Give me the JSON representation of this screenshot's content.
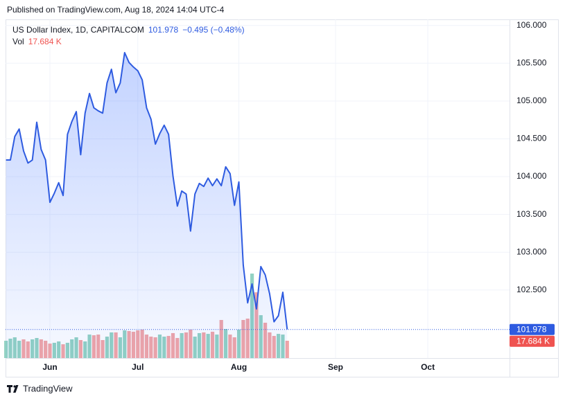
{
  "header": {
    "published": "Published on TradingView.com, Aug 18, 2024 14:04 UTC-4"
  },
  "chart_data": {
    "type": "line",
    "symbol": "US Dollar Index, 1D, CAPITALCOM",
    "change_label": "−0.495 (−0.48%)",
    "x": [
      0,
      1,
      2,
      3,
      4,
      5,
      6,
      7,
      8,
      9,
      10,
      11,
      12,
      13,
      14,
      15,
      16,
      17,
      18,
      19,
      20,
      21,
      22,
      23,
      24,
      25,
      26,
      27,
      28,
      29,
      30,
      31,
      32,
      33,
      34,
      35,
      36,
      37,
      38,
      39,
      40,
      41,
      42,
      43,
      44,
      45,
      46,
      47,
      48,
      49,
      50,
      51,
      52,
      53,
      54,
      55,
      56,
      57,
      58,
      59,
      60,
      61,
      62,
      63,
      64
    ],
    "xlim": [
      -0.1,
      114.6
    ],
    "xticks": [
      {
        "value": 10,
        "label": "Jun"
      },
      {
        "value": 30,
        "label": "Jul"
      },
      {
        "value": 53,
        "label": "Aug"
      },
      {
        "value": 75,
        "label": "Sep"
      },
      {
        "value": 96,
        "label": "Oct"
      }
    ],
    "ylim": [
      101.6,
      106.08
    ],
    "yticks": [
      {
        "value": 102.5,
        "label": "102.500"
      },
      {
        "value": 103,
        "label": "103.000"
      },
      {
        "value": 103.5,
        "label": "103.500"
      },
      {
        "value": 104,
        "label": "104.000"
      },
      {
        "value": 104.5,
        "label": "104.500"
      },
      {
        "value": 105,
        "label": "105.000"
      },
      {
        "value": 105.5,
        "label": "105.500"
      },
      {
        "value": 106,
        "label": "106.000"
      }
    ],
    "grid": true,
    "series": [
      {
        "name": "US Dollar Index",
        "color": "#2e5be0",
        "values": [
          104.22,
          104.22,
          104.53,
          104.63,
          104.34,
          104.18,
          104.22,
          104.72,
          104.36,
          104.22,
          103.66,
          103.78,
          103.92,
          103.75,
          104.56,
          104.73,
          104.86,
          104.29,
          104.84,
          105.1,
          104.91,
          104.87,
          104.84,
          105.24,
          105.42,
          105.11,
          105.24,
          105.64,
          105.51,
          105.45,
          105.4,
          105.28,
          104.91,
          104.76,
          104.43,
          104.57,
          104.68,
          104.56,
          104.01,
          103.61,
          103.81,
          103.77,
          103.28,
          103.77,
          103.91,
          103.87,
          103.98,
          103.88,
          103.97,
          103.88,
          104.13,
          104.04,
          103.62,
          103.93,
          102.83,
          102.33,
          102.58,
          102.25,
          102.81,
          102.7,
          102.45,
          102.08,
          102.16,
          102.47,
          101.978
        ]
      }
    ],
    "volume": {
      "name": "Vol",
      "up_color": "#92d2c3",
      "down_color": "#f2a5a6",
      "last_value_label": "17.684 K",
      "values": [
        17.7,
        19.8,
        21.2,
        17.7,
        19.1,
        17.0,
        19.1,
        20.5,
        19.1,
        17.7,
        14.8,
        15.6,
        17.0,
        14.1,
        15.6,
        19.1,
        21.2,
        18.4,
        17.0,
        24.0,
        23.3,
        24.0,
        18.4,
        21.9,
        26.2,
        26.2,
        21.2,
        28.3,
        27.6,
        26.9,
        28.3,
        29.0,
        24.0,
        21.9,
        21.2,
        24.0,
        21.9,
        22.6,
        25.5,
        20.5,
        25.5,
        26.2,
        29.0,
        21.9,
        25.5,
        26.2,
        24.7,
        26.9,
        24.0,
        38.9,
        29.7,
        24.0,
        21.2,
        29.0,
        38.9,
        40.3,
        86.3,
        67.2,
        43.8,
        36.1,
        26.2,
        22.6,
        24.7,
        24.0,
        17.684
      ]
    }
  },
  "footer": {
    "brand": "TradingView"
  }
}
